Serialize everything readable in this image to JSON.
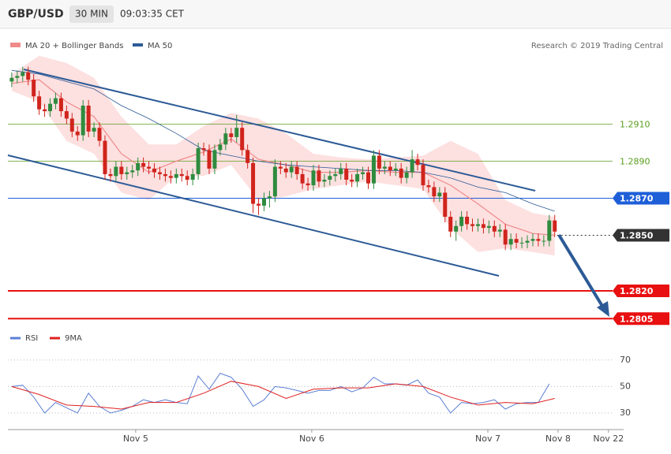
{
  "header": {
    "symbol": "GBP/USD",
    "interval": "30 MIN",
    "time": "09:03:35 CET"
  },
  "chart_data": [
    {
      "type": "candlestick",
      "credit": "Research © 2019 Trading Central",
      "up_color": "#2e8b3e",
      "down_color": "#d0241c",
      "open": [
        1.2933,
        1.2935,
        1.2936,
        1.2938,
        1.2934,
        1.2925,
        1.2918,
        1.2917,
        1.2921,
        1.2924,
        1.2917,
        1.2913,
        1.2906,
        1.2904,
        1.292,
        1.2906,
        1.2908,
        1.2901,
        1.2883,
        1.2882,
        1.2887,
        1.2883,
        1.2884,
        1.2885,
        1.2889,
        1.2887,
        1.2886,
        1.2884,
        1.2883,
        1.2882,
        1.2881,
        1.2883,
        1.2882,
        1.288,
        1.2883,
        1.2897,
        1.2896,
        1.2886,
        1.2896,
        1.2899,
        1.2905,
        1.2903,
        1.2908,
        1.2896,
        1.2889,
        1.2867,
        1.2866,
        1.287,
        1.2871,
        1.2887,
        1.2886,
        1.2884,
        1.2887,
        1.2883,
        1.2878,
        1.2877,
        1.2885,
        1.2879,
        1.288,
        1.2882,
        1.2883,
        1.2886,
        1.288,
        1.2879,
        1.2883,
        1.2884,
        1.2878,
        1.2893,
        1.2886,
        1.2887,
        1.2885,
        1.2886,
        1.2881,
        1.2884,
        1.2891,
        1.2888,
        1.2877,
        1.2876,
        1.2871,
        1.2873,
        1.286,
        1.2852,
        1.2855,
        1.286,
        1.2856,
        1.2855,
        1.2856,
        1.2854,
        1.2855,
        1.2852,
        1.2853,
        1.2845,
        1.2848,
        1.2846,
        1.2846,
        1.2847,
        1.2848,
        1.2847,
        1.2847,
        1.2858
      ],
      "high": [
        1.2938,
        1.2939,
        1.2941,
        1.2941,
        1.2937,
        1.2928,
        1.2921,
        1.2924,
        1.2927,
        1.2927,
        1.292,
        1.2916,
        1.2909,
        1.2923,
        1.2923,
        1.2911,
        1.2911,
        1.2904,
        1.2886,
        1.289,
        1.289,
        1.2887,
        1.2888,
        1.2892,
        1.2892,
        1.289,
        1.2889,
        1.2887,
        1.2886,
        1.2885,
        1.2886,
        1.2886,
        1.2885,
        1.2886,
        1.29,
        1.29,
        1.2899,
        1.2899,
        1.2902,
        1.2908,
        1.2908,
        1.2915,
        1.2911,
        1.2899,
        1.2892,
        1.287,
        1.2873,
        1.2874,
        1.2891,
        1.289,
        1.2889,
        1.289,
        1.289,
        1.2886,
        1.2881,
        1.2888,
        1.2888,
        1.2883,
        1.2885,
        1.2886,
        1.2889,
        1.2889,
        1.2883,
        1.2886,
        1.2887,
        1.2887,
        1.2896,
        1.2896,
        1.289,
        1.289,
        1.2889,
        1.2889,
        1.2887,
        1.2896,
        1.2894,
        1.2891,
        1.288,
        1.2879,
        1.2876,
        1.2876,
        1.2863,
        1.2858,
        1.2863,
        1.2863,
        1.2859,
        1.2859,
        1.2859,
        1.2858,
        1.2858,
        1.2856,
        1.2856,
        1.2851,
        1.2851,
        1.2849,
        1.285,
        1.2851,
        1.2851,
        1.285,
        1.2861,
        1.2861
      ],
      "low": [
        1.293,
        1.2932,
        1.2933,
        1.2931,
        1.2922,
        1.2915,
        1.2914,
        1.2914,
        1.2918,
        1.2914,
        1.291,
        1.2903,
        1.2901,
        1.2901,
        1.2903,
        1.2903,
        1.2898,
        1.288,
        1.2879,
        1.2879,
        1.288,
        1.288,
        1.2881,
        1.2882,
        1.2884,
        1.2883,
        1.2881,
        1.288,
        1.2879,
        1.2878,
        1.2878,
        1.2879,
        1.2877,
        1.2877,
        1.288,
        1.2893,
        1.2883,
        1.2883,
        1.2893,
        1.2896,
        1.29,
        1.29,
        1.2893,
        1.2886,
        1.2862,
        1.2861,
        1.2863,
        1.2865,
        1.2868,
        1.2883,
        1.2881,
        1.2881,
        1.288,
        1.2875,
        1.2874,
        1.2874,
        1.2876,
        1.2876,
        1.2877,
        1.2879,
        1.288,
        1.2877,
        1.2876,
        1.2876,
        1.288,
        1.2875,
        1.2875,
        1.2883,
        1.2883,
        1.2882,
        1.2882,
        1.2878,
        1.2878,
        1.2881,
        1.2885,
        1.2874,
        1.2873,
        1.2868,
        1.2868,
        1.2857,
        1.2849,
        1.2847,
        1.2852,
        1.2853,
        1.2852,
        1.2852,
        1.2851,
        1.2851,
        1.2849,
        1.2849,
        1.2842,
        1.2842,
        1.2843,
        1.2843,
        1.2843,
        1.2844,
        1.2844,
        1.2844,
        1.2844,
        1.2849
      ],
      "close": [
        1.2935,
        1.2936,
        1.2938,
        1.2934,
        1.2925,
        1.2918,
        1.2917,
        1.2921,
        1.2924,
        1.2917,
        1.2913,
        1.2906,
        1.2904,
        1.292,
        1.2906,
        1.2908,
        1.2901,
        1.2883,
        1.2882,
        1.2887,
        1.2883,
        1.2884,
        1.2885,
        1.2889,
        1.2887,
        1.2886,
        1.2884,
        1.2883,
        1.2882,
        1.2881,
        1.2883,
        1.2882,
        1.288,
        1.2883,
        1.2897,
        1.2896,
        1.2886,
        1.2896,
        1.2899,
        1.2905,
        1.2903,
        1.2908,
        1.2896,
        1.2889,
        1.2867,
        1.2866,
        1.287,
        1.2871,
        1.2887,
        1.2886,
        1.2884,
        1.2887,
        1.2883,
        1.2878,
        1.2877,
        1.2885,
        1.2879,
        1.288,
        1.2882,
        1.2883,
        1.2886,
        1.288,
        1.2879,
        1.2883,
        1.2884,
        1.2878,
        1.2893,
        1.2886,
        1.2887,
        1.2885,
        1.2886,
        1.2881,
        1.2884,
        1.2891,
        1.2888,
        1.2877,
        1.2876,
        1.2871,
        1.2873,
        1.286,
        1.2852,
        1.2855,
        1.286,
        1.2856,
        1.2855,
        1.2856,
        1.2854,
        1.2855,
        1.2852,
        1.2853,
        1.2845,
        1.2848,
        1.2846,
        1.2846,
        1.2847,
        1.2848,
        1.2847,
        1.2847,
        1.2858,
        1.2852
      ],
      "overlays": [
        {
          "name": "MA 20 + Bollinger Bands",
          "color": "#f08a8a",
          "band_color": "#fde0e0",
          "x": [
            0,
            5,
            10,
            15,
            20,
            25,
            30,
            35,
            40,
            45,
            50,
            55,
            60,
            65,
            70,
            75,
            80,
            85,
            90,
            95,
            99
          ],
          "upper": [
            1.2937,
            1.2947,
            1.2943,
            1.2935,
            1.2914,
            1.2899,
            1.2899,
            1.2909,
            1.2916,
            1.2913,
            1.2905,
            1.2894,
            1.2892,
            1.2891,
            1.2892,
            1.2893,
            1.2901,
            1.2894,
            1.2869,
            1.2862,
            1.286
          ],
          "values": [
            1.2932,
            1.2934,
            1.2922,
            1.2914,
            1.2894,
            1.2884,
            1.289,
            1.2895,
            1.2902,
            1.2891,
            1.2888,
            1.2884,
            1.2884,
            1.2885,
            1.2884,
            1.2884,
            1.2877,
            1.2867,
            1.2856,
            1.2851,
            1.285
          ],
          "lower": [
            1.2928,
            1.2922,
            1.2901,
            1.2894,
            1.2873,
            1.2869,
            1.2882,
            1.2882,
            1.2888,
            1.2869,
            1.2871,
            1.2875,
            1.2877,
            1.2879,
            1.2877,
            1.2875,
            1.2854,
            1.2841,
            1.2843,
            1.2841,
            1.2839
          ]
        },
        {
          "name": "MA 50",
          "color": "#2c5a96",
          "x": [
            0,
            5,
            10,
            15,
            20,
            25,
            30,
            35,
            40,
            45,
            50,
            55,
            60,
            65,
            70,
            75,
            80,
            85,
            90,
            95,
            99
          ],
          "values": [
            1.2939,
            1.2937,
            1.2933,
            1.2929,
            1.292,
            1.2913,
            1.2905,
            1.2896,
            1.2893,
            1.289,
            1.2888,
            1.2887,
            1.2886,
            1.2885,
            1.2885,
            1.2884,
            1.2881,
            1.2876,
            1.2873,
            1.2867,
            1.2863
          ]
        }
      ],
      "levels": [
        {
          "value": 1.291,
          "label": "1.2910",
          "color": "#5a9e1e",
          "style": "text",
          "width": 0.8
        },
        {
          "value": 1.289,
          "label": "1.2890",
          "color": "#5a9e1e",
          "style": "text",
          "width": 0.8
        },
        {
          "value": 1.287,
          "label": "1.2870",
          "color": "#1e5fd8",
          "style": "box",
          "width": 1
        },
        {
          "value": 1.285,
          "label": "1.2850",
          "color": "#333333",
          "style": "box",
          "width": 1,
          "dash": true
        },
        {
          "value": 1.282,
          "label": "1.2820",
          "color": "#e81010",
          "style": "box",
          "width": 2
        },
        {
          "value": 1.2805,
          "label": "1.2805",
          "color": "#e81010",
          "style": "box",
          "width": 2
        }
      ],
      "xlim": [
        -0.7,
        109.4
      ],
      "xticks": [
        {
          "value": 22.6,
          "label": "Nov 5"
        },
        {
          "value": 54.7,
          "label": "Nov 6"
        },
        {
          "value": 86.8,
          "label": "Nov 7"
        },
        {
          "value": 99.6,
          "label": "Nov 8"
        },
        {
          "value": 108.8,
          "label": "Nov 22"
        }
      ],
      "ylim": [
        1.28,
        1.296
      ]
    },
    {
      "type": "line",
      "ylim": [
        17.5,
        80
      ],
      "yticks": [
        30,
        50,
        70
      ],
      "grid": true,
      "series": [
        {
          "name": "RSI",
          "color": "#5b7fd4",
          "x": [
            0,
            2,
            4,
            6,
            8,
            10,
            12,
            14,
            16,
            18,
            20,
            22,
            24,
            26,
            28,
            30,
            32,
            34,
            36,
            38,
            40,
            42,
            44,
            46,
            48,
            50,
            52,
            54,
            56,
            58,
            60,
            62,
            64,
            66,
            68,
            70,
            72,
            74,
            76,
            78,
            80,
            82,
            84,
            86,
            88,
            90,
            92,
            94,
            96,
            98
          ],
          "values": [
            50,
            51,
            42,
            30,
            38,
            34,
            30,
            45,
            35,
            30,
            32,
            35,
            40,
            38,
            40,
            38,
            37,
            58,
            48,
            60,
            57,
            48,
            35,
            40,
            50,
            49,
            47,
            45,
            47,
            47,
            50,
            46,
            49,
            57,
            52,
            52,
            51,
            55,
            45,
            42,
            30,
            38,
            37,
            38,
            40,
            33,
            37,
            38,
            38,
            52
          ]
        },
        {
          "name": "9MA",
          "color": "#e02020",
          "x": [
            0,
            5,
            10,
            15,
            20,
            25,
            30,
            35,
            40,
            45,
            50,
            55,
            60,
            65,
            70,
            75,
            80,
            85,
            90,
            95,
            99
          ],
          "values": [
            50,
            44,
            36,
            35,
            33,
            38,
            38,
            45,
            54,
            50,
            41,
            48,
            49,
            49,
            52,
            50,
            42,
            36,
            38,
            37,
            41
          ]
        }
      ]
    }
  ]
}
